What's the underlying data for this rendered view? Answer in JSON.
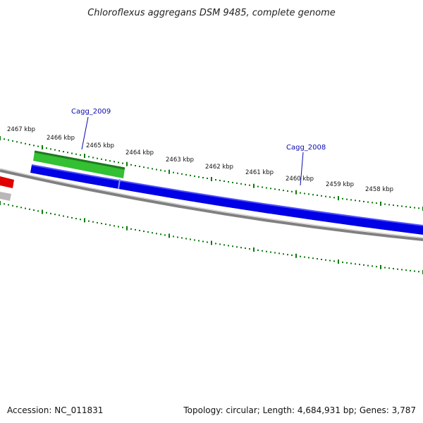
{
  "title": "Chloroflexus aggregans DSM 9485, complete genome",
  "accession": "Accession: NC_011831",
  "topology": "Topology: circular; Length: 4,684,931 bp; Genes: 3,787",
  "kbp_labels": [
    "2467 kbp",
    "2466 kbp",
    "2465 kbp",
    "2464 kbp",
    "2463 kbp",
    "2462 kbp",
    "2461 kbp",
    "2460 kbp",
    "2459 kbp",
    "2458 kbp"
  ],
  "genes": [
    {
      "name": "Cagg_2009",
      "strand": "forward",
      "color": "#33b033"
    },
    {
      "name": "Cagg_2008",
      "strand": "reverse",
      "color": "#0000e6"
    }
  ],
  "colors": {
    "backbone": "#808080",
    "tick": "#0a7a0a",
    "reverse_feature": "#0000e6",
    "forward_feature": "#2e9e2e",
    "red_feature": "#e00000",
    "gray_feature": "#b8b8b8",
    "label": "#0a0ab0"
  }
}
